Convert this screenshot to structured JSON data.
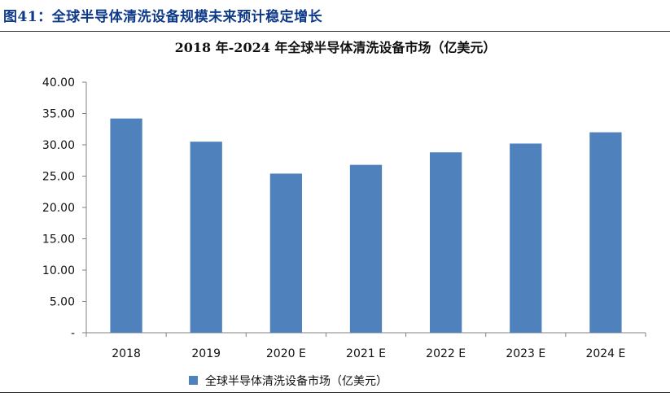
{
  "figure": {
    "caption": "图41：全球半导体清洗设备规模未来预计稳定增长"
  },
  "colors": {
    "bar": "#4f81bd",
    "caption": "#0f3a8a",
    "axis": "#808080"
  },
  "chart_data": {
    "type": "bar",
    "title": "2018 年-2024 年全球半导体清洗设备市场（亿美元）",
    "categories": [
      "2018",
      "2019",
      "2020 E",
      "2021 E",
      "2022 E",
      "2023 E",
      "2024 E"
    ],
    "series": [
      {
        "name": "全球半导体清洗设备市场（亿美元）",
        "values": [
          34.2,
          30.5,
          25.4,
          26.8,
          28.8,
          30.2,
          32.0
        ]
      }
    ],
    "ylim": [
      0,
      40
    ],
    "yticks": [
      "-",
      "5.00",
      "10.00",
      "15.00",
      "20.00",
      "25.00",
      "30.00",
      "35.00",
      "40.00"
    ],
    "xlabel": "",
    "ylabel": "",
    "grid": false,
    "legend_position": "bottom"
  }
}
